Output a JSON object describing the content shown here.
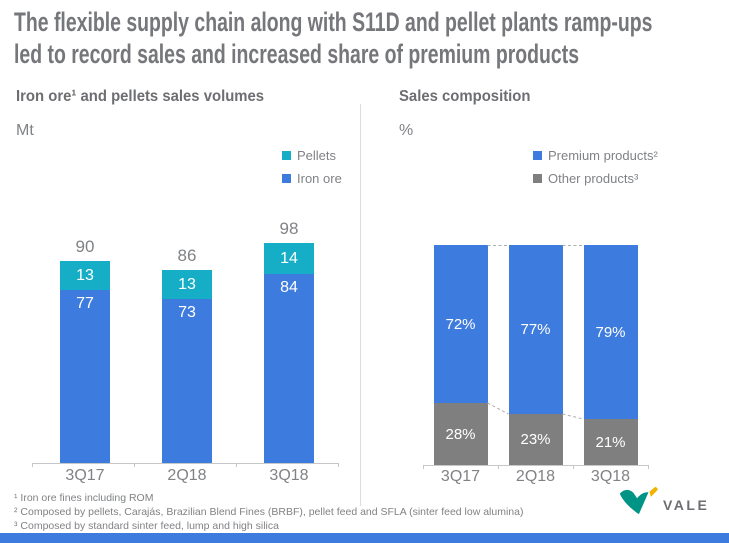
{
  "header": {
    "title_lines": [
      "The flexible supply chain along with S11D and pellet plants ramp-ups",
      "led to record sales and increased share of premium products"
    ]
  },
  "left_panel": {
    "title": "Iron ore¹ and pellets sales volumes",
    "unit": "Mt",
    "legend": [
      {
        "label": "Pellets",
        "color": "#15AEC6"
      },
      {
        "label": "Iron ore",
        "color": "#3E7BDE"
      }
    ]
  },
  "right_panel": {
    "title": "Sales composition",
    "unit": "%",
    "legend": [
      {
        "label": "Premium products²",
        "color": "#3E7BDE"
      },
      {
        "label": "Other products³",
        "color": "#7F7F7F"
      }
    ]
  },
  "chart_data": [
    {
      "type": "bar",
      "stacked": true,
      "title": "Iron ore and pellets sales volumes",
      "ylabel": "Mt",
      "categories": [
        "3Q17",
        "2Q18",
        "3Q18"
      ],
      "series": [
        {
          "name": "Iron ore",
          "color": "#3E7BDE",
          "values": [
            77,
            73,
            84
          ]
        },
        {
          "name": "Pellets",
          "color": "#15AEC6",
          "values": [
            13,
            13,
            14
          ]
        }
      ],
      "totals": [
        90,
        86,
        98
      ],
      "legend_position": "top-right",
      "grid": false
    },
    {
      "type": "bar",
      "stacked": true,
      "percent": true,
      "title": "Sales composition",
      "ylabel": "%",
      "categories": [
        "3Q17",
        "2Q18",
        "3Q18"
      ],
      "series": [
        {
          "name": "Premium products",
          "color": "#3E7BDE",
          "values": [
            72,
            77,
            79
          ]
        },
        {
          "name": "Other products",
          "color": "#7F7F7F",
          "values": [
            28,
            23,
            21
          ]
        }
      ],
      "value_suffix": "%",
      "legend_position": "top-right",
      "grid": false
    }
  ],
  "footnotes": [
    "¹ Iron ore fines including ROM",
    "² Composed by pellets, Carajás, Brazilian Blend Fines (BRBF), pellet feed and SFLA (sinter feed low alumina)",
    "³ Composed by standard sinter feed, lump and high silica"
  ],
  "logo": {
    "text": "VALE",
    "green": "#009486",
    "yellow": "#F0B400"
  },
  "colors": {
    "accent_blue": "#3E7BDE",
    "teal": "#15AEC6",
    "gray_segment": "#7F7F7F",
    "text_gray": "#808285",
    "title_gray": "#76777B",
    "axis_gray": "#C6C7C9",
    "dash_gray": "#ABADB0"
  }
}
